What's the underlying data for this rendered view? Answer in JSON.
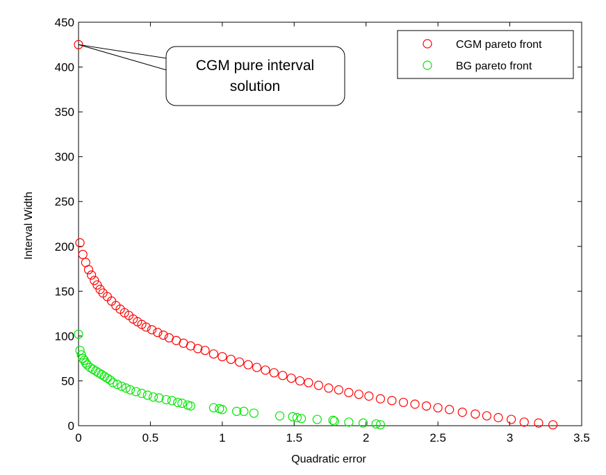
{
  "chart_data": {
    "type": "scatter",
    "title": "",
    "xlabel": "Quadratic error",
    "ylabel": "Interval Width",
    "xlim": [
      0,
      3.5
    ],
    "ylim": [
      0,
      450
    ],
    "xticks": [
      "0",
      "0.5",
      "1",
      "1.5",
      "2",
      "2.5",
      "3",
      "3.5"
    ],
    "yticks": [
      "0",
      "50",
      "100",
      "150",
      "200",
      "250",
      "300",
      "350",
      "400",
      "450"
    ],
    "grid": false,
    "legend_position": "top-right",
    "annotation": {
      "text_lines": [
        "CGM pure interval",
        "solution"
      ],
      "target": [
        0,
        425
      ]
    },
    "series": [
      {
        "name": "CGM pareto front",
        "color": "#ff0000",
        "marker": "circle-open",
        "points": [
          [
            0.0,
            425
          ],
          [
            0.01,
            204
          ],
          [
            0.03,
            191
          ],
          [
            0.05,
            182
          ],
          [
            0.07,
            174
          ],
          [
            0.09,
            168
          ],
          [
            0.11,
            162
          ],
          [
            0.13,
            157
          ],
          [
            0.15,
            152
          ],
          [
            0.17,
            148
          ],
          [
            0.2,
            144
          ],
          [
            0.23,
            139
          ],
          [
            0.26,
            134
          ],
          [
            0.29,
            130
          ],
          [
            0.32,
            126
          ],
          [
            0.35,
            123
          ],
          [
            0.38,
            119
          ],
          [
            0.41,
            116
          ],
          [
            0.44,
            113
          ],
          [
            0.47,
            110
          ],
          [
            0.51,
            107
          ],
          [
            0.55,
            104
          ],
          [
            0.59,
            101
          ],
          [
            0.63,
            98
          ],
          [
            0.68,
            95
          ],
          [
            0.73,
            92
          ],
          [
            0.78,
            89
          ],
          [
            0.83,
            86
          ],
          [
            0.88,
            84
          ],
          [
            0.94,
            80
          ],
          [
            1.0,
            77
          ],
          [
            1.06,
            74
          ],
          [
            1.12,
            71
          ],
          [
            1.18,
            68
          ],
          [
            1.24,
            65
          ],
          [
            1.3,
            62
          ],
          [
            1.36,
            59
          ],
          [
            1.42,
            56
          ],
          [
            1.48,
            53
          ],
          [
            1.54,
            50
          ],
          [
            1.6,
            48
          ],
          [
            1.67,
            45
          ],
          [
            1.74,
            42
          ],
          [
            1.81,
            40
          ],
          [
            1.88,
            37
          ],
          [
            1.95,
            35
          ],
          [
            2.02,
            33
          ],
          [
            2.1,
            30
          ],
          [
            2.18,
            28
          ],
          [
            2.26,
            26
          ],
          [
            2.34,
            24
          ],
          [
            2.42,
            22
          ],
          [
            2.5,
            20
          ],
          [
            2.58,
            18
          ],
          [
            2.67,
            15
          ],
          [
            2.76,
            13
          ],
          [
            2.84,
            11
          ],
          [
            2.92,
            9
          ],
          [
            3.01,
            7
          ],
          [
            3.1,
            4
          ],
          [
            3.2,
            3
          ],
          [
            3.3,
            1
          ]
        ]
      },
      {
        "name": "BG pareto front",
        "color": "#00e600",
        "marker": "circle-open",
        "points": [
          [
            0.0,
            102
          ],
          [
            0.01,
            84
          ],
          [
            0.02,
            79
          ],
          [
            0.03,
            75
          ],
          [
            0.04,
            73
          ],
          [
            0.05,
            70
          ],
          [
            0.06,
            68
          ],
          [
            0.08,
            65
          ],
          [
            0.1,
            63
          ],
          [
            0.12,
            61
          ],
          [
            0.14,
            59
          ],
          [
            0.16,
            57
          ],
          [
            0.18,
            55
          ],
          [
            0.2,
            53
          ],
          [
            0.22,
            51
          ],
          [
            0.24,
            48
          ],
          [
            0.27,
            46
          ],
          [
            0.3,
            44
          ],
          [
            0.33,
            42
          ],
          [
            0.36,
            40
          ],
          [
            0.4,
            38
          ],
          [
            0.44,
            36
          ],
          [
            0.48,
            34
          ],
          [
            0.52,
            32
          ],
          [
            0.56,
            31
          ],
          [
            0.61,
            29
          ],
          [
            0.65,
            28
          ],
          [
            0.69,
            26
          ],
          [
            0.72,
            25
          ],
          [
            0.76,
            23
          ],
          [
            0.78,
            22
          ],
          [
            0.94,
            20
          ],
          [
            0.98,
            19
          ],
          [
            1.0,
            18
          ],
          [
            1.1,
            16
          ],
          [
            1.15,
            16
          ],
          [
            1.22,
            14
          ],
          [
            1.4,
            11
          ],
          [
            1.49,
            10
          ],
          [
            1.52,
            9
          ],
          [
            1.55,
            8
          ],
          [
            1.66,
            7
          ],
          [
            1.77,
            6
          ],
          [
            1.78,
            5
          ],
          [
            1.88,
            4
          ],
          [
            1.98,
            3
          ],
          [
            2.07,
            2
          ],
          [
            2.1,
            1
          ]
        ]
      }
    ]
  }
}
